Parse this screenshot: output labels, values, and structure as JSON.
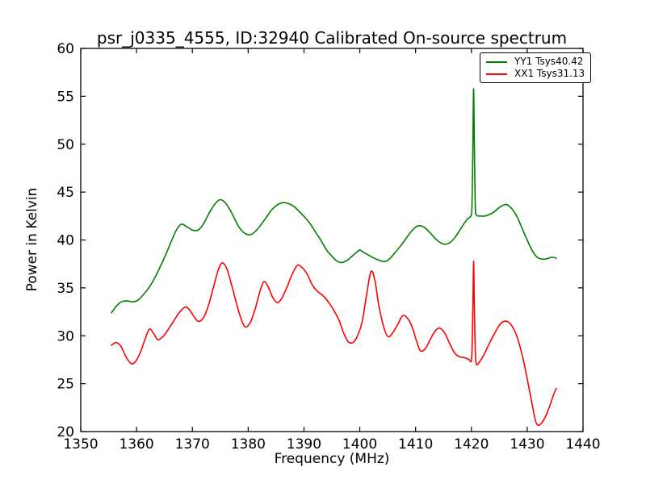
{
  "figure": {
    "background": "#ffffff"
  },
  "chart_data": {
    "type": "line",
    "title": "psr_j0335_4555, ID:32940 Calibrated On-source spectrum",
    "xlabel": "Frequency (MHz)",
    "ylabel": "Power in Kelvin",
    "xlim": [
      1350,
      1440
    ],
    "ylim": [
      20,
      60
    ],
    "xticks": [
      1350,
      1360,
      1370,
      1380,
      1390,
      1400,
      1410,
      1420,
      1430,
      1440
    ],
    "yticks": [
      20,
      25,
      30,
      35,
      40,
      45,
      50,
      55,
      60
    ],
    "grid": false,
    "legend": {
      "location": "upper-right"
    },
    "series": [
      {
        "name": "YY1 Tsys40.42",
        "color": "#008000",
        "points": [
          [
            1355.5,
            32.4
          ],
          [
            1356.4,
            33.1
          ],
          [
            1357.3,
            33.55
          ],
          [
            1358.3,
            33.65
          ],
          [
            1359.2,
            33.55
          ],
          [
            1360.2,
            33.7
          ],
          [
            1361.3,
            34.35
          ],
          [
            1362.3,
            35.1
          ],
          [
            1363.4,
            36.2
          ],
          [
            1364.4,
            37.4
          ],
          [
            1365.4,
            38.7
          ],
          [
            1366.4,
            40.1
          ],
          [
            1367.3,
            41.2
          ],
          [
            1368.1,
            41.65
          ],
          [
            1369.1,
            41.35
          ],
          [
            1370.2,
            41.0
          ],
          [
            1371.2,
            41.1
          ],
          [
            1372.1,
            41.8
          ],
          [
            1373.1,
            42.9
          ],
          [
            1374.1,
            43.8
          ],
          [
            1374.9,
            44.2
          ],
          [
            1375.7,
            44.0
          ],
          [
            1376.6,
            43.3
          ],
          [
            1377.5,
            42.3
          ],
          [
            1378.4,
            41.3
          ],
          [
            1379.4,
            40.7
          ],
          [
            1380.4,
            40.55
          ],
          [
            1381.3,
            40.9
          ],
          [
            1382.3,
            41.6
          ],
          [
            1383.3,
            42.4
          ],
          [
            1384.3,
            43.2
          ],
          [
            1385.3,
            43.7
          ],
          [
            1386.3,
            43.9
          ],
          [
            1387.2,
            43.8
          ],
          [
            1388.2,
            43.5
          ],
          [
            1389.1,
            43.0
          ],
          [
            1390.1,
            42.4
          ],
          [
            1391.1,
            41.7
          ],
          [
            1392.1,
            40.8
          ],
          [
            1393.1,
            39.9
          ],
          [
            1394.0,
            39.0
          ],
          [
            1395.0,
            38.3
          ],
          [
            1395.9,
            37.8
          ],
          [
            1396.8,
            37.65
          ],
          [
            1397.8,
            37.9
          ],
          [
            1398.7,
            38.35
          ],
          [
            1399.4,
            38.7
          ],
          [
            1400.0,
            38.95
          ],
          [
            1400.7,
            38.7
          ],
          [
            1401.5,
            38.45
          ],
          [
            1402.4,
            38.15
          ],
          [
            1403.4,
            37.9
          ],
          [
            1404.4,
            37.75
          ],
          [
            1405.3,
            38.0
          ],
          [
            1406.2,
            38.6
          ],
          [
            1407.2,
            39.3
          ],
          [
            1408.1,
            40.0
          ],
          [
            1409.1,
            40.8
          ],
          [
            1410.0,
            41.35
          ],
          [
            1410.7,
            41.5
          ],
          [
            1411.6,
            41.3
          ],
          [
            1412.6,
            40.75
          ],
          [
            1413.6,
            40.1
          ],
          [
            1414.5,
            39.7
          ],
          [
            1415.3,
            39.55
          ],
          [
            1416.2,
            39.75
          ],
          [
            1417.1,
            40.3
          ],
          [
            1418.0,
            41.1
          ],
          [
            1418.9,
            41.9
          ],
          [
            1419.5,
            42.3
          ],
          [
            1419.9,
            42.5
          ],
          [
            1420.1,
            43.5
          ],
          [
            1420.25,
            49.0
          ],
          [
            1420.4,
            55.8
          ],
          [
            1420.55,
            49.0
          ],
          [
            1420.7,
            43.5
          ],
          [
            1420.9,
            42.6
          ],
          [
            1421.6,
            42.5
          ],
          [
            1422.4,
            42.5
          ],
          [
            1423.2,
            42.65
          ],
          [
            1424.0,
            42.9
          ],
          [
            1424.8,
            43.3
          ],
          [
            1425.6,
            43.6
          ],
          [
            1426.3,
            43.7
          ],
          [
            1427.2,
            43.3
          ],
          [
            1428.2,
            42.4
          ],
          [
            1429.1,
            41.2
          ],
          [
            1430.0,
            40.0
          ],
          [
            1430.9,
            38.9
          ],
          [
            1431.8,
            38.2
          ],
          [
            1432.7,
            38.0
          ],
          [
            1433.6,
            38.05
          ],
          [
            1434.4,
            38.2
          ],
          [
            1435.2,
            38.1
          ]
        ]
      },
      {
        "name": "XX1 Tsys31.13",
        "color": "#ff0000",
        "points": [
          [
            1355.5,
            29.0
          ],
          [
            1356.3,
            29.3
          ],
          [
            1357.2,
            28.9
          ],
          [
            1358.1,
            27.8
          ],
          [
            1359.0,
            27.1
          ],
          [
            1359.8,
            27.3
          ],
          [
            1360.7,
            28.3
          ],
          [
            1361.5,
            29.6
          ],
          [
            1362.3,
            30.7
          ],
          [
            1363.1,
            30.2
          ],
          [
            1363.8,
            29.6
          ],
          [
            1364.7,
            29.9
          ],
          [
            1365.6,
            30.6
          ],
          [
            1366.5,
            31.4
          ],
          [
            1367.5,
            32.3
          ],
          [
            1368.7,
            33.0
          ],
          [
            1369.5,
            32.7
          ],
          [
            1370.3,
            32.0
          ],
          [
            1371.1,
            31.5
          ],
          [
            1372.0,
            31.9
          ],
          [
            1372.9,
            33.2
          ],
          [
            1373.8,
            35.1
          ],
          [
            1374.6,
            36.8
          ],
          [
            1375.3,
            37.6
          ],
          [
            1376.1,
            37.1
          ],
          [
            1376.9,
            35.6
          ],
          [
            1377.8,
            33.6
          ],
          [
            1378.6,
            32.0
          ],
          [
            1379.4,
            30.95
          ],
          [
            1380.3,
            31.3
          ],
          [
            1381.2,
            32.7
          ],
          [
            1382.1,
            34.6
          ],
          [
            1382.8,
            35.65
          ],
          [
            1383.6,
            35.1
          ],
          [
            1384.4,
            34.0
          ],
          [
            1385.2,
            33.45
          ],
          [
            1386.0,
            33.9
          ],
          [
            1386.9,
            35.0
          ],
          [
            1387.8,
            36.3
          ],
          [
            1388.8,
            37.35
          ],
          [
            1389.7,
            37.1
          ],
          [
            1390.6,
            36.4
          ],
          [
            1391.5,
            35.3
          ],
          [
            1392.4,
            34.65
          ],
          [
            1393.4,
            34.2
          ],
          [
            1394.4,
            33.5
          ],
          [
            1395.4,
            32.6
          ],
          [
            1396.3,
            31.6
          ],
          [
            1397.1,
            30.3
          ],
          [
            1397.9,
            29.4
          ],
          [
            1398.8,
            29.3
          ],
          [
            1399.6,
            30.0
          ],
          [
            1400.4,
            31.4
          ],
          [
            1401.2,
            34.2
          ],
          [
            1402.0,
            36.7
          ],
          [
            1402.7,
            35.8
          ],
          [
            1403.4,
            33.2
          ],
          [
            1404.3,
            30.9
          ],
          [
            1405.1,
            29.9
          ],
          [
            1406.0,
            30.4
          ],
          [
            1406.9,
            31.3
          ],
          [
            1407.7,
            32.1
          ],
          [
            1408.6,
            31.8
          ],
          [
            1409.4,
            30.9
          ],
          [
            1410.2,
            29.4
          ],
          [
            1410.9,
            28.4
          ],
          [
            1411.8,
            28.7
          ],
          [
            1412.7,
            29.7
          ],
          [
            1413.5,
            30.5
          ],
          [
            1414.3,
            30.8
          ],
          [
            1415.2,
            30.3
          ],
          [
            1416.1,
            29.2
          ],
          [
            1417.0,
            28.2
          ],
          [
            1417.9,
            27.8
          ],
          [
            1418.8,
            27.7
          ],
          [
            1419.5,
            27.55
          ],
          [
            1420.0,
            27.4
          ],
          [
            1420.15,
            29.5
          ],
          [
            1420.28,
            33.5
          ],
          [
            1420.4,
            37.8
          ],
          [
            1420.52,
            33.5
          ],
          [
            1420.65,
            29.5
          ],
          [
            1420.85,
            27.1
          ],
          [
            1421.6,
            27.4
          ],
          [
            1422.4,
            28.2
          ],
          [
            1423.3,
            29.3
          ],
          [
            1424.2,
            30.3
          ],
          [
            1425.0,
            31.1
          ],
          [
            1425.8,
            31.5
          ],
          [
            1426.7,
            31.4
          ],
          [
            1427.6,
            30.7
          ],
          [
            1428.4,
            29.5
          ],
          [
            1429.3,
            27.5
          ],
          [
            1430.1,
            25.2
          ],
          [
            1430.9,
            22.8
          ],
          [
            1431.5,
            21.1
          ],
          [
            1432.0,
            20.65
          ],
          [
            1432.6,
            20.9
          ],
          [
            1433.3,
            21.6
          ],
          [
            1434.0,
            22.6
          ],
          [
            1434.7,
            23.8
          ],
          [
            1435.2,
            24.5
          ]
        ]
      }
    ]
  }
}
